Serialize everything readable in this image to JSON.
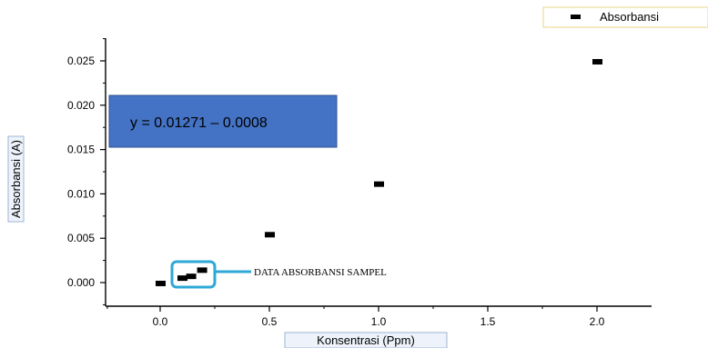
{
  "chart_data": {
    "type": "scatter",
    "title": "",
    "xlabel": "Konsentrasi (Ppm)",
    "ylabel": "Absorbansi (A)",
    "xlim": [
      -0.25,
      2.25
    ],
    "ylim": [
      -0.002,
      0.028
    ],
    "x_ticks": [
      "0.0",
      "0.5",
      "1.0",
      "1.5",
      "2.0"
    ],
    "y_ticks": [
      "0.000",
      "0.005",
      "0.010",
      "0.015",
      "0.020",
      "0.025"
    ],
    "series": [
      {
        "name": "Absorbansi",
        "color": "#000000",
        "points": [
          {
            "x": 0.0,
            "y": -0.0001
          },
          {
            "x": 0.1,
            "y": 0.0005
          },
          {
            "x": 0.14,
            "y": 0.0007
          },
          {
            "x": 0.19,
            "y": 0.0014
          },
          {
            "x": 0.5,
            "y": 0.0054
          },
          {
            "x": 1.0,
            "y": 0.0111
          },
          {
            "x": 2.0,
            "y": 0.0249
          }
        ]
      }
    ],
    "legend": {
      "label": "Absorbansi",
      "position": "top-right"
    },
    "equation_box": {
      "text": "y = 0.01271 – 0.0008",
      "fill": "#4472C4",
      "border": "#2F528F"
    },
    "annotation": {
      "text": "DATA ABSORBANSI SAMPEL",
      "highlight_color": "#2EA8D6"
    },
    "grid": false
  }
}
